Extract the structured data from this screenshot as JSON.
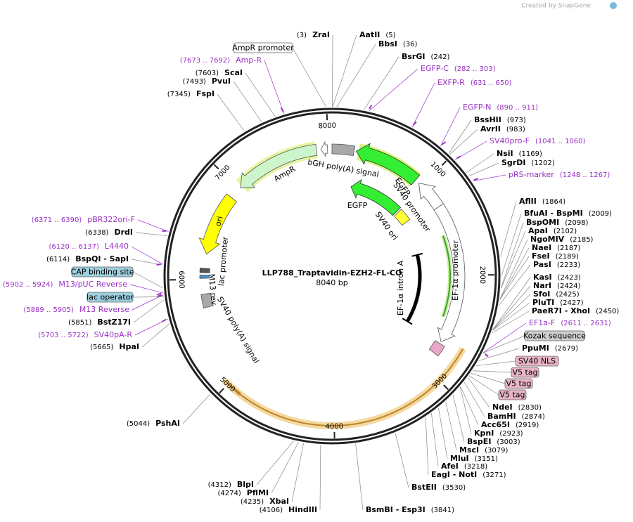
{
  "header": {
    "credit": "Created by SnapGene"
  },
  "map": {
    "name": "LLP788_Traptavidin-EZH2-FL-CO",
    "length": "8040 bp",
    "ticks": [
      "1000",
      "2000",
      "3000",
      "4000",
      "5000",
      "6000",
      "7000",
      "8000"
    ]
  },
  "enzymes": [
    {
      "position": "(3)",
      "name": "ZraI"
    },
    {
      "position": "(5)",
      "name": "AatII"
    },
    {
      "position": "(36)",
      "name": "BbsI"
    },
    {
      "position": "(242)",
      "name": "BsrGI"
    },
    {
      "position": "(973)",
      "name": "BssHII"
    },
    {
      "position": "(983)",
      "name": "AvrII"
    },
    {
      "position": "(1169)",
      "name": "NsiI"
    },
    {
      "position": "(1202)",
      "name": "SgrDI"
    },
    {
      "position": "(1864)",
      "name": "AflII"
    },
    {
      "position": "(2009)",
      "name": "BfuAI - BspMI"
    },
    {
      "position": "(2098)",
      "name": "BspOMI"
    },
    {
      "position": "(2102)",
      "name": "ApaI"
    },
    {
      "position": "(2185)",
      "name": "NgoMIV"
    },
    {
      "position": "(2187)",
      "name": "NaeI"
    },
    {
      "position": "(2189)",
      "name": "FseI"
    },
    {
      "position": "(2233)",
      "name": "PasI"
    },
    {
      "position": "(2423)",
      "name": "KasI"
    },
    {
      "position": "(2424)",
      "name": "NarI"
    },
    {
      "position": "(2425)",
      "name": "SfoI"
    },
    {
      "position": "(2427)",
      "name": "PluTI"
    },
    {
      "position": "(2450)",
      "name": "PaeR7I - XhoI"
    },
    {
      "position": "(2679)",
      "name": "PpuMI"
    },
    {
      "position": "(2830)",
      "name": "NdeI"
    },
    {
      "position": "(2874)",
      "name": "BamHI"
    },
    {
      "position": "(2919)",
      "name": "Acc65I"
    },
    {
      "position": "(2923)",
      "name": "KpnI"
    },
    {
      "position": "(3003)",
      "name": "BspEI"
    },
    {
      "position": "(3079)",
      "name": "MscI"
    },
    {
      "position": "(3151)",
      "name": "MluI"
    },
    {
      "position": "(3218)",
      "name": "AfeI"
    },
    {
      "position": "(3271)",
      "name": "EagI - NotI"
    },
    {
      "position": "(3530)",
      "name": "BstEII"
    },
    {
      "position": "(3841)",
      "name": "BsmBI - Esp3I"
    },
    {
      "position": "(4106)",
      "name": "HindIII"
    },
    {
      "position": "(4235)",
      "name": "XbaI"
    },
    {
      "position": "(4274)",
      "name": "PflMI"
    },
    {
      "position": "(4312)",
      "name": "BlpI"
    },
    {
      "position": "(5044)",
      "name": "PshAI"
    },
    {
      "position": "(5665)",
      "name": "HpaI"
    },
    {
      "position": "(5851)",
      "name": "BstZ17I"
    },
    {
      "position": "(6114)",
      "name": "BspQI - SapI"
    },
    {
      "position": "(6338)",
      "name": "DrdI"
    },
    {
      "position": "(7345)",
      "name": "FspI"
    },
    {
      "position": "(7493)",
      "name": "PvuI"
    },
    {
      "position": "(7603)",
      "name": "ScaI"
    }
  ],
  "primers": [
    {
      "range": "(7673 .. 7692)",
      "name": "Amp-R"
    },
    {
      "range": "(282 .. 303)",
      "name": "EGFP-C"
    },
    {
      "range": "(631 .. 650)",
      "name": "EXFP-R"
    },
    {
      "range": "(890 .. 911)",
      "name": "EGFP-N"
    },
    {
      "range": "(1041 .. 1060)",
      "name": "SV40pro-F"
    },
    {
      "range": "(1248 .. 1267)",
      "name": "pRS-marker"
    },
    {
      "range": "(2611 .. 2631)",
      "name": "EF1a-F"
    },
    {
      "range": "(6371 .. 6390)",
      "name": "pBR322ori-F"
    },
    {
      "range": "(6120 .. 6137)",
      "name": "L4440"
    },
    {
      "range": "(5902 .. 5924)",
      "name": "M13/pUC Reverse"
    },
    {
      "range": "(5889 .. 5905)",
      "name": "M13 Reverse"
    },
    {
      "range": "(5703 .. 5722)",
      "name": "SV40pA-R"
    }
  ],
  "boxed_features": [
    "AmpR promoter",
    "CAP binding site",
    "lac operator",
    "Kozak sequence",
    "SV40 NLS",
    "V5 tag",
    "V5 tag",
    "V5 tag"
  ],
  "map_features": [
    "AmpR",
    "bGH poly(A) signal",
    "EGFP",
    "SV40 promoter",
    "EGFP",
    "SV40 ori",
    "ori",
    "lac promoter",
    "M13 rev",
    "SV40 poly(A) signal",
    "EF-1α intron A",
    "EF-1α promoter"
  ]
}
